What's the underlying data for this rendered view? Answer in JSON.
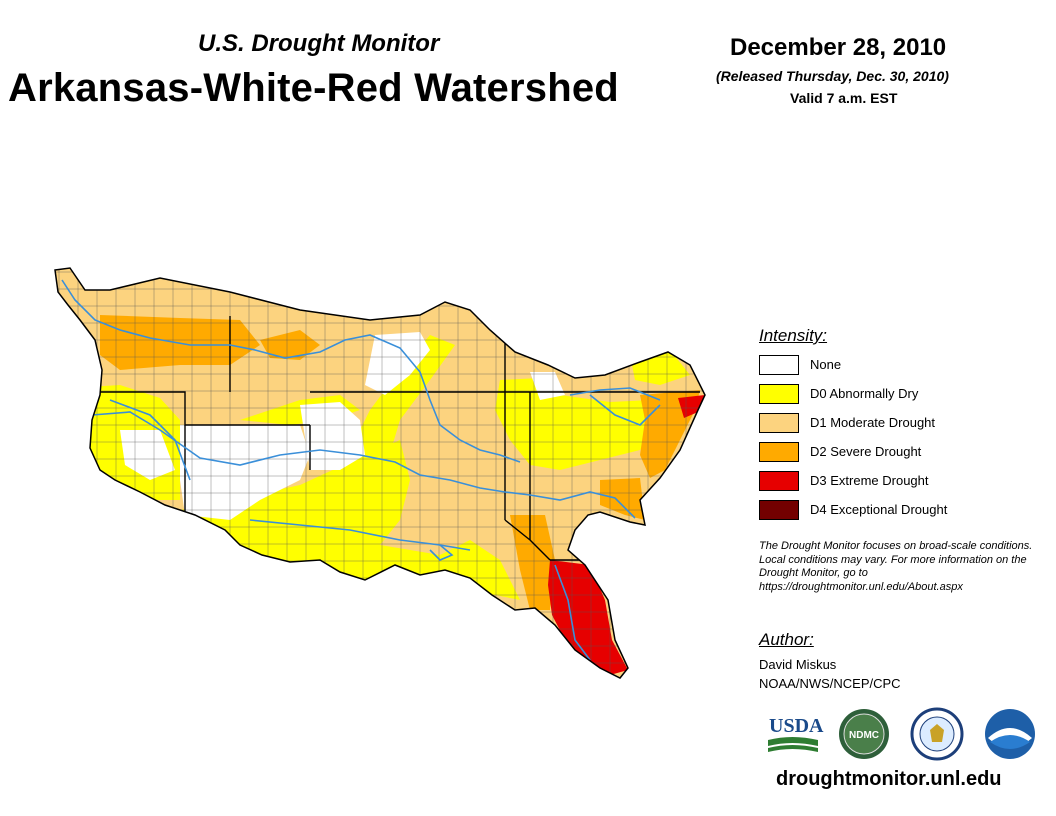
{
  "header": {
    "subtitle": "U.S. Drought Monitor",
    "title": "Arkansas-White-Red Watershed",
    "date": "December 28, 2010",
    "released": "(Released Thursday, Dec. 30, 2010)",
    "valid": "Valid 7 a.m. EST"
  },
  "legend": {
    "title": "Intensity:",
    "items": [
      {
        "label": "None",
        "color": "#ffffff"
      },
      {
        "label": "D0 Abnormally Dry",
        "color": "#ffff00"
      },
      {
        "label": "D1 Moderate Drought",
        "color": "#fcd37f"
      },
      {
        "label": "D2 Severe Drought",
        "color": "#ffaa00"
      },
      {
        "label": "D3 Extreme Drought",
        "color": "#e60000"
      },
      {
        "label": "D4 Exceptional Drought",
        "color": "#730000"
      }
    ]
  },
  "note": "The Drought Monitor focuses on broad-scale conditions. Local conditions may vary. For more information on the Drought Monitor, go to https://droughtmonitor.unl.edu/About.aspx",
  "author": {
    "title": "Author:",
    "name": "David Miskus",
    "org": "NOAA/NWS/NCEP/CPC"
  },
  "logos": {
    "usda": "USDA",
    "ndmc": "NDMC",
    "noaa": "NOAA"
  },
  "site": "droughtmonitor.unl.edu",
  "colors": {
    "river": "#3a8fd9",
    "border": "#000000",
    "county": "#555555"
  }
}
